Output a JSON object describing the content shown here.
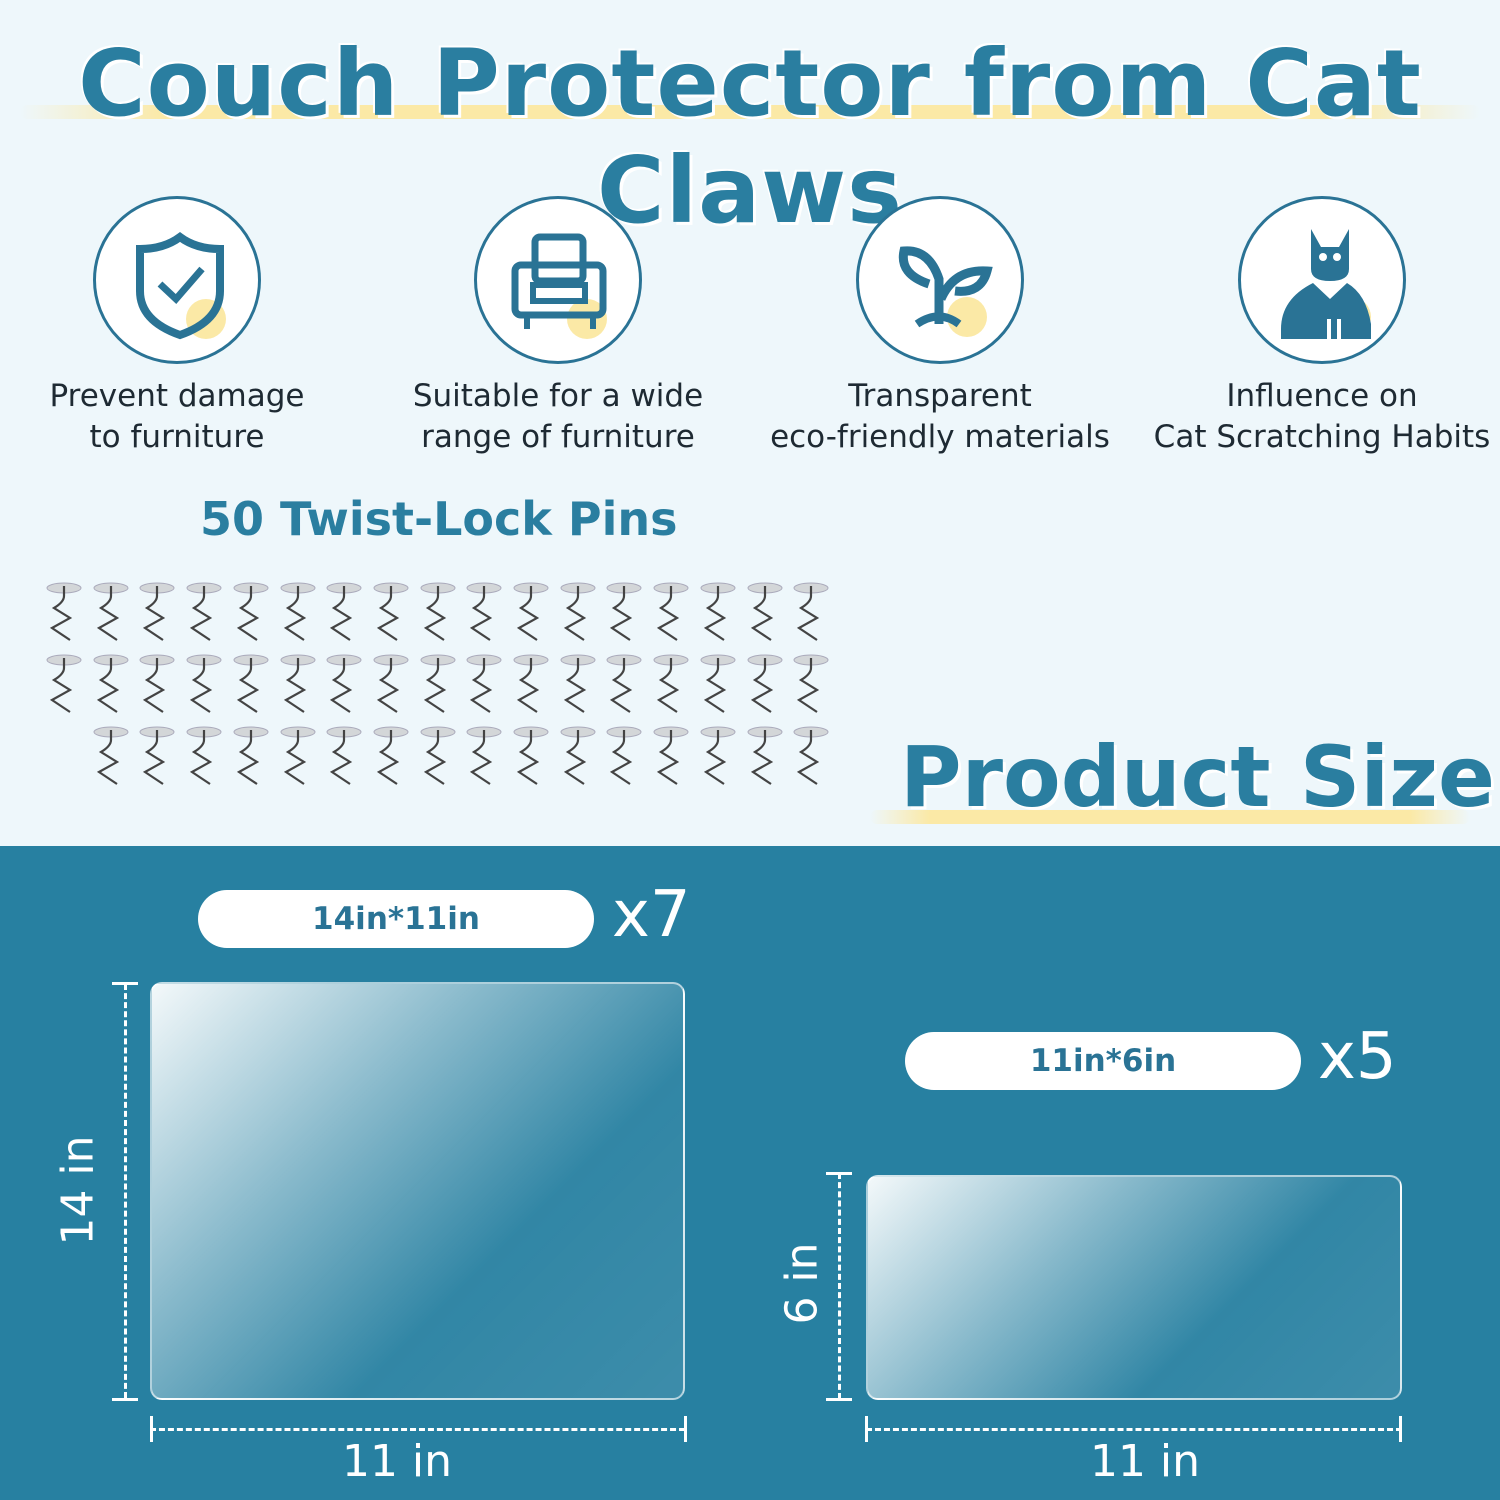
{
  "title": "Couch Protector from Cat Claws",
  "features": [
    {
      "icon": "shield-check-icon",
      "line1": "Prevent damage",
      "line2": "to furniture"
    },
    {
      "icon": "armchair-icon",
      "line1": "Suitable for a wide",
      "line2": "range of furniture"
    },
    {
      "icon": "sprout-icon",
      "line1": "Transparent",
      "line2": "eco-friendly materials"
    },
    {
      "icon": "cat-icon",
      "line1": "Influence on",
      "line2": "Cat Scratching Habits"
    }
  ],
  "pins": {
    "title": "50 Twist-Lock Pins",
    "count": 50
  },
  "size_title": "Product Size",
  "products": [
    {
      "label": "14in*11in",
      "quantity": "x7",
      "height": "14 in",
      "width": "11 in"
    },
    {
      "label": "11in*6in",
      "quantity": "x5",
      "height": "6 in",
      "width": "11 in"
    }
  ],
  "colors": {
    "accent": "#2a7ea0",
    "background": "#eef7fb",
    "panel_bg": "#2780a1",
    "highlight": "#fbe9a6"
  }
}
